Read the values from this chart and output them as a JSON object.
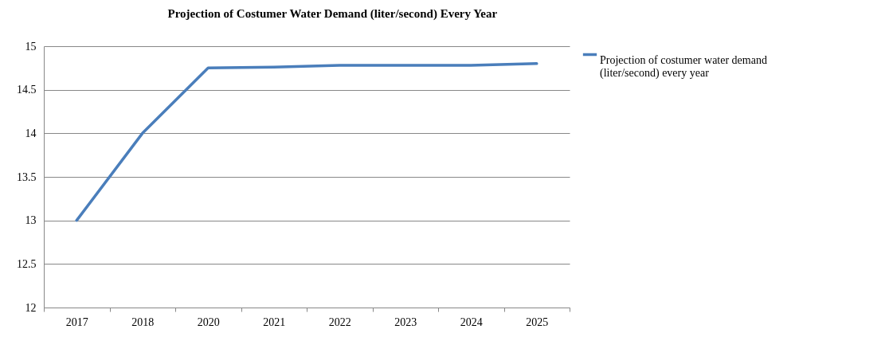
{
  "chart_data": {
    "type": "line",
    "title": "Projection of Costumer Water Demand (liter/second) Every Year",
    "categories": [
      "2017",
      "2018",
      "2020",
      "2021",
      "2022",
      "2023",
      "2024",
      "2025"
    ],
    "series": [
      {
        "name": "Projection of costumer water demand (liter/second) every year",
        "color": "#4a7ebb",
        "values": [
          13,
          14,
          14.75,
          14.76,
          14.78,
          14.78,
          14.78,
          14.8
        ]
      }
    ],
    "ylim": [
      12,
      15
    ],
    "yticks": [
      12,
      12.5,
      13,
      13.5,
      14,
      14.5,
      15
    ],
    "grid": "y",
    "legend": "right",
    "marker": "none",
    "line_style": "solid"
  }
}
